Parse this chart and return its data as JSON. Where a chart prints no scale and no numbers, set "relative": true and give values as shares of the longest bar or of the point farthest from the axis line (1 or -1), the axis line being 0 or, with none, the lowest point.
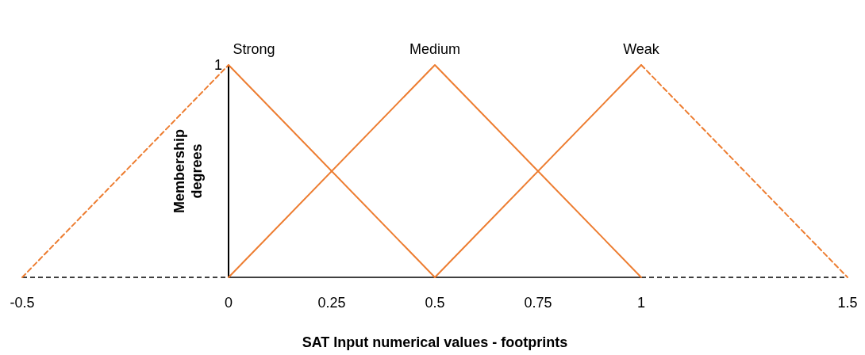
{
  "chart_data": {
    "type": "line",
    "xlabel": "SAT Input numerical values - footprints",
    "ylabel": "Membership degrees",
    "xlim": [
      -0.5,
      1.5
    ],
    "xticks": [
      -0.5,
      0,
      0.25,
      0.5,
      0.75,
      1,
      1.5
    ],
    "relative": true,
    "annotations": [
      {
        "text": "1",
        "x": 0,
        "y": 1
      }
    ],
    "series": [
      {
        "name": "Strong",
        "color": "#ed7d31",
        "x": [
          0,
          0.5
        ],
        "values": [
          1,
          0
        ],
        "line_style": "solid"
      },
      {
        "color": "#ed7d31",
        "x": [
          -0.5,
          0
        ],
        "values": [
          0,
          1
        ],
        "line_style": "dashed"
      },
      {
        "name": "Medium",
        "color": "#ed7d31",
        "x": [
          0,
          0.5,
          1
        ],
        "values": [
          0,
          1,
          0
        ],
        "line_style": "solid"
      },
      {
        "name": "Weak",
        "color": "#ed7d31",
        "x": [
          0.5,
          1
        ],
        "values": [
          0,
          1
        ],
        "line_style": "solid"
      },
      {
        "color": "#ed7d31",
        "x": [
          1,
          1.5
        ],
        "values": [
          1,
          0
        ],
        "line_style": "dashed"
      }
    ]
  }
}
